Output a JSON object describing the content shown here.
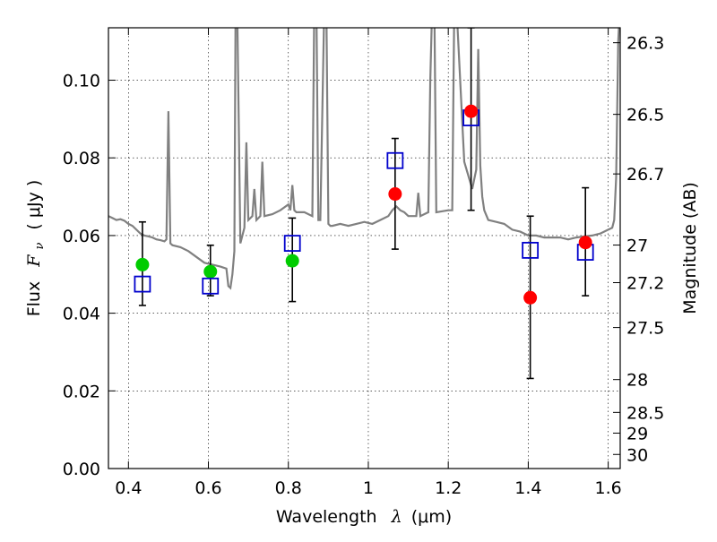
{
  "chart_data": {
    "type": "scatter",
    "title": "",
    "xlabel_parts": {
      "text": "Wavelength",
      "symbol": "λ",
      "unit": "(μm)"
    },
    "ylabel_parts": {
      "text": "Flux",
      "symbol": "F",
      "subscript": "ν",
      "unit": "( μJy )"
    },
    "y2label": "Magnitude (AB)",
    "xlim": [
      0.35,
      1.63
    ],
    "ylim": [
      0.0,
      0.1135
    ],
    "x_ticks": [
      0.4,
      0.6,
      0.8,
      1.0,
      1.2,
      1.4,
      1.6
    ],
    "x_tick_labels": [
      "0.4",
      "0.6",
      "0.8",
      "1",
      "1.2",
      "1.4",
      "1.6"
    ],
    "y_ticks": [
      0.0,
      0.02,
      0.04,
      0.06,
      0.08,
      0.1
    ],
    "y_tick_labels": [
      "0.00",
      "0.02",
      "0.04",
      "0.06",
      "0.08",
      "0.10"
    ],
    "y2_ticks": [
      {
        "label": "26.3",
        "mag": 26.3
      },
      {
        "label": "26.5",
        "mag": 26.5
      },
      {
        "label": "26.7",
        "mag": 26.7
      },
      {
        "label": "27",
        "mag": 27.0
      },
      {
        "label": "27.2",
        "mag": 27.2
      },
      {
        "label": "27.5",
        "mag": 27.5
      },
      {
        "label": "28",
        "mag": 28.0
      },
      {
        "label": "28.5",
        "mag": 28.5
      },
      {
        "label": "29",
        "mag": 29.0
      },
      {
        "label": "30",
        "mag": 30.0
      }
    ],
    "grid": true,
    "colors": {
      "model_line": "#808080",
      "green_points": "#00cc00",
      "red_points": "#ff0000",
      "model_squares": "#0000cc",
      "errorbars": "#000000"
    },
    "model_spectrum": {
      "x": [
        0.35,
        0.36,
        0.37,
        0.38,
        0.39,
        0.4,
        0.41,
        0.42,
        0.43,
        0.44,
        0.45,
        0.46,
        0.47,
        0.48,
        0.49,
        0.495,
        0.5,
        0.505,
        0.51,
        0.53,
        0.55,
        0.57,
        0.59,
        0.61,
        0.63,
        0.645,
        0.65,
        0.655,
        0.66,
        0.665,
        0.668,
        0.672,
        0.68,
        0.69,
        0.695,
        0.7,
        0.71,
        0.715,
        0.72,
        0.73,
        0.735,
        0.74,
        0.76,
        0.78,
        0.8,
        0.805,
        0.81,
        0.815,
        0.82,
        0.84,
        0.86,
        0.865,
        0.87,
        0.875,
        0.88,
        0.89,
        0.895,
        0.9,
        0.905,
        0.91,
        0.93,
        0.95,
        0.97,
        0.99,
        1.01,
        1.03,
        1.05,
        1.06,
        1.07,
        1.08,
        1.09,
        1.1,
        1.12,
        1.125,
        1.13,
        1.15,
        1.155,
        1.16,
        1.165,
        1.17,
        1.2,
        1.21,
        1.215,
        1.22,
        1.24,
        1.26,
        1.27,
        1.275,
        1.28,
        1.285,
        1.29,
        1.3,
        1.32,
        1.34,
        1.36,
        1.38,
        1.4,
        1.42,
        1.44,
        1.46,
        1.48,
        1.5,
        1.52,
        1.54,
        1.56,
        1.58,
        1.6,
        1.61,
        1.615,
        1.62,
        1.625,
        1.63
      ],
      "y": [
        0.065,
        0.0645,
        0.064,
        0.0642,
        0.0638,
        0.063,
        0.0625,
        0.0615,
        0.0605,
        0.06,
        0.0598,
        0.0595,
        0.059,
        0.0588,
        0.0585,
        0.059,
        0.092,
        0.058,
        0.0575,
        0.057,
        0.056,
        0.0545,
        0.053,
        0.0525,
        0.052,
        0.0515,
        0.047,
        0.0465,
        0.05,
        0.056,
        0.12,
        0.12,
        0.058,
        0.062,
        0.084,
        0.064,
        0.065,
        0.072,
        0.064,
        0.065,
        0.079,
        0.065,
        0.0655,
        0.0665,
        0.068,
        0.0665,
        0.073,
        0.0665,
        0.066,
        0.066,
        0.065,
        0.12,
        0.12,
        0.064,
        0.064,
        0.12,
        0.12,
        0.063,
        0.0625,
        0.0625,
        0.063,
        0.0625,
        0.063,
        0.0635,
        0.063,
        0.064,
        0.065,
        0.0665,
        0.0675,
        0.0665,
        0.066,
        0.065,
        0.065,
        0.071,
        0.065,
        0.066,
        0.1,
        0.12,
        0.12,
        0.066,
        0.0665,
        0.0665,
        0.12,
        0.12,
        0.079,
        0.072,
        0.077,
        0.108,
        0.078,
        0.07,
        0.0665,
        0.064,
        0.0635,
        0.063,
        0.0615,
        0.061,
        0.06,
        0.06,
        0.0595,
        0.0595,
        0.0595,
        0.059,
        0.0595,
        0.0598,
        0.06,
        0.0605,
        0.0615,
        0.062,
        0.064,
        0.075,
        0.11,
        0.12
      ]
    },
    "green_points": [
      {
        "x": 0.435,
        "y": 0.0525
      },
      {
        "x": 0.605,
        "y": 0.0507
      },
      {
        "x": 0.81,
        "y": 0.0535
      }
    ],
    "red_points": [
      {
        "x": 1.067,
        "y": 0.0707
      },
      {
        "x": 1.257,
        "y": 0.092
      },
      {
        "x": 1.405,
        "y": 0.044
      },
      {
        "x": 1.543,
        "y": 0.0582
      }
    ],
    "model_squares": [
      {
        "x": 0.435,
        "y": 0.0475
      },
      {
        "x": 0.605,
        "y": 0.047
      },
      {
        "x": 0.81,
        "y": 0.058
      },
      {
        "x": 1.067,
        "y": 0.0793
      },
      {
        "x": 1.257,
        "y": 0.0903
      },
      {
        "x": 1.405,
        "y": 0.0562
      },
      {
        "x": 1.543,
        "y": 0.0557
      }
    ],
    "errorbars": [
      {
        "x": 0.435,
        "low": 0.042,
        "high": 0.0635
      },
      {
        "x": 0.605,
        "low": 0.0445,
        "high": 0.0575
      },
      {
        "x": 0.81,
        "low": 0.043,
        "high": 0.0645
      },
      {
        "x": 1.067,
        "low": 0.0565,
        "high": 0.085
      },
      {
        "x": 1.257,
        "low": 0.0665,
        "high": 0.1135
      },
      {
        "x": 1.405,
        "low": 0.0232,
        "high": 0.065
      },
      {
        "x": 1.543,
        "low": 0.0445,
        "high": 0.0723
      }
    ]
  }
}
